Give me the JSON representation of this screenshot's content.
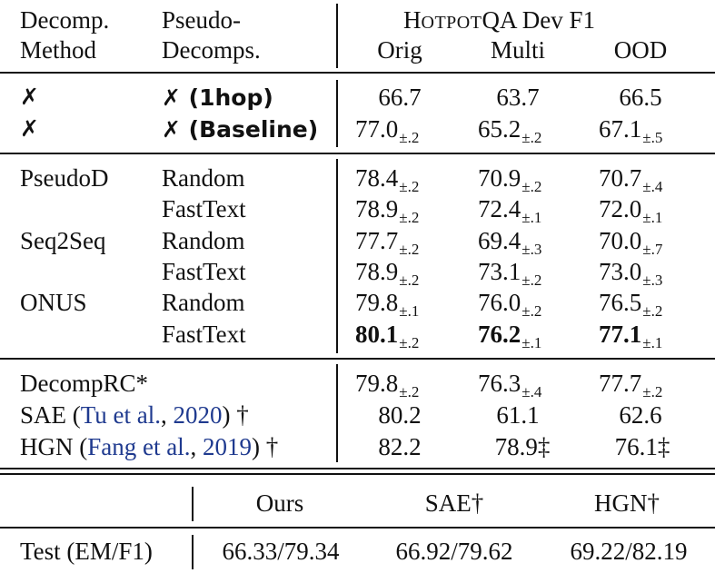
{
  "header": {
    "col1_line1": "Decomp.",
    "col1_line2": "Method",
    "col2_line1": "Pseudo-",
    "col2_line2": "Decomps.",
    "group_H": "H",
    "group_OTPOT": "OTPOT",
    "group_rest": "QA Dev F1",
    "orig": "Orig",
    "multi": "Multi",
    "ood": "OOD"
  },
  "baseline_rows": [
    {
      "method": "✗",
      "pseudo": "✗ (1hop)",
      "orig": "66.7",
      "orig_pm": "",
      "multi": "63.7",
      "multi_pm": "",
      "ood": "66.5",
      "ood_pm": ""
    },
    {
      "method": "✗",
      "pseudo": "✗ (Baseline)",
      "orig": "77.0",
      "orig_pm": "±.2",
      "multi": "65.2",
      "multi_pm": "±.2",
      "ood": "67.1",
      "ood_pm": "±.5"
    }
  ],
  "decomp_rows": [
    {
      "method": "PseudoD",
      "pseudo": "Random",
      "orig": "78.4",
      "orig_pm": "±.2",
      "multi": "70.9",
      "multi_pm": "±.2",
      "ood": "70.7",
      "ood_pm": "±.4"
    },
    {
      "method": "",
      "pseudo": "FastText",
      "orig": "78.9",
      "orig_pm": "±.2",
      "multi": "72.4",
      "multi_pm": "±.1",
      "ood": "72.0",
      "ood_pm": "±.1"
    },
    {
      "method": "Seq2Seq",
      "pseudo": "Random",
      "orig": "77.7",
      "orig_pm": "±.2",
      "multi": "69.4",
      "multi_pm": "±.3",
      "ood": "70.0",
      "ood_pm": "±.7"
    },
    {
      "method": "",
      "pseudo": "FastText",
      "orig": "78.9",
      "orig_pm": "±.2",
      "multi": "73.1",
      "multi_pm": "±.2",
      "ood": "73.0",
      "ood_pm": "±.3"
    },
    {
      "method": "ONUS",
      "pseudo": "Random",
      "orig": "79.8",
      "orig_pm": "±.1",
      "multi": "76.0",
      "multi_pm": "±.2",
      "ood": "76.5",
      "ood_pm": "±.2"
    },
    {
      "method": "",
      "pseudo": "FastText",
      "orig": "80.1",
      "orig_pm": "±.2",
      "multi": "76.2",
      "multi_pm": "±.1",
      "ood": "77.1",
      "ood_pm": "±.1"
    }
  ],
  "other_rows": [
    {
      "name": "DecompRC*",
      "orig": "79.8",
      "orig_pm": "±.2",
      "multi": "76.3",
      "multi_pm": "±.4",
      "ood": "77.7",
      "ood_pm": "±.2"
    },
    {
      "name_pre": "SAE (",
      "cite_a": "Tu et al.",
      "cite_sep": ", ",
      "cite_b": "2020",
      "name_post": ") †",
      "orig": "80.2",
      "multi": "61.1",
      "ood": "62.6"
    },
    {
      "name_pre": "HGN (",
      "cite_a": "Fang et al.",
      "cite_sep": ", ",
      "cite_b": "2019",
      "name_post": ") †",
      "orig": "82.2",
      "multi": "78.9‡",
      "ood": "76.1‡"
    }
  ],
  "test_table": {
    "headers": [
      "Ours",
      "SAE†",
      "HGN†"
    ],
    "row_label": "Test (EM/F1)",
    "values": [
      "66.33/79.34",
      "66.92/79.62",
      "69.22/82.19"
    ]
  },
  "colors": {
    "citation": "#1f3a8f",
    "text": "#111111"
  }
}
